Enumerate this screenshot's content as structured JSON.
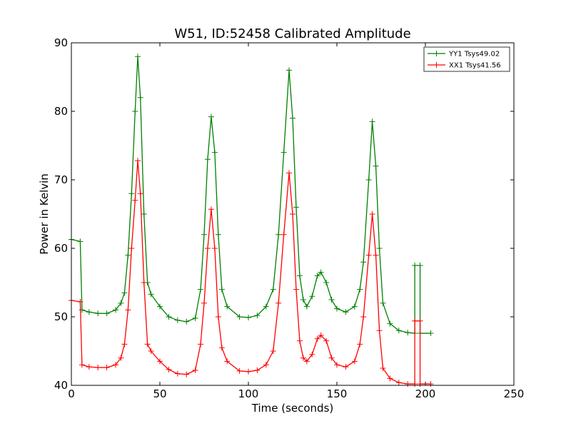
{
  "chart_data": {
    "type": "line",
    "title": "W51, ID:52458 Calibrated Amplitude",
    "xlabel": "Time (seconds)",
    "ylabel": "Power in Kelvin",
    "xlim": [
      0,
      250
    ],
    "ylim": [
      40,
      90
    ],
    "xticks": [
      "0",
      "50",
      "100",
      "150",
      "200",
      "250"
    ],
    "yticks": [
      "40",
      "50",
      "60",
      "70",
      "80",
      "90"
    ],
    "grid": false,
    "legend_position": "top-right",
    "series": [
      {
        "name": "YY1 Tsys49.02",
        "color": "#008000",
        "marker": "+",
        "points": [
          [
            0,
            61.3
          ],
          [
            5,
            61.0
          ],
          [
            6,
            51.0
          ],
          [
            10,
            50.7
          ],
          [
            15,
            50.5
          ],
          [
            20,
            50.5
          ],
          [
            25,
            51.0
          ],
          [
            28,
            52.0
          ],
          [
            30,
            53.5
          ],
          [
            32,
            59.0
          ],
          [
            34,
            68.0
          ],
          [
            36,
            80.0
          ],
          [
            37.5,
            88.0
          ],
          [
            39,
            82.0
          ],
          [
            41,
            65.0
          ],
          [
            43,
            55.0
          ],
          [
            45,
            53.3
          ],
          [
            50,
            51.5
          ],
          [
            55,
            50.0
          ],
          [
            60,
            49.5
          ],
          [
            65,
            49.3
          ],
          [
            70,
            49.8
          ],
          [
            73,
            54.0
          ],
          [
            75,
            62.0
          ],
          [
            77,
            73.0
          ],
          [
            79,
            79.2
          ],
          [
            81,
            74.0
          ],
          [
            83,
            62.0
          ],
          [
            85,
            54.0
          ],
          [
            88,
            51.5
          ],
          [
            95,
            50.0
          ],
          [
            100,
            49.9
          ],
          [
            105,
            50.2
          ],
          [
            110,
            51.5
          ],
          [
            114,
            54.0
          ],
          [
            117,
            62.0
          ],
          [
            120,
            74.0
          ],
          [
            123,
            86.0
          ],
          [
            125,
            79.0
          ],
          [
            127,
            66.0
          ],
          [
            129,
            56.0
          ],
          [
            131,
            52.5
          ],
          [
            133,
            51.5
          ],
          [
            136,
            53.0
          ],
          [
            139,
            56.0
          ],
          [
            141,
            56.5
          ],
          [
            144,
            55.0
          ],
          [
            147,
            52.5
          ],
          [
            150,
            51.2
          ],
          [
            155,
            50.7
          ],
          [
            160,
            51.5
          ],
          [
            163,
            54.0
          ],
          [
            165,
            58.0
          ],
          [
            168,
            70.0
          ],
          [
            170,
            78.5
          ],
          [
            172,
            72.0
          ],
          [
            174,
            60.0
          ],
          [
            176,
            52.0
          ],
          [
            180,
            49.0
          ],
          [
            185,
            48.0
          ],
          [
            190,
            47.7
          ],
          [
            194,
            47.6
          ],
          [
            194,
            57.5
          ],
          [
            197,
            57.5
          ],
          [
            197,
            47.6
          ],
          [
            203,
            47.6
          ]
        ]
      },
      {
        "name": "XX1 Tsys41.56",
        "color": "#ff0000",
        "marker": "+",
        "points": [
          [
            0,
            52.4
          ],
          [
            5,
            52.2
          ],
          [
            6,
            43.0
          ],
          [
            10,
            42.7
          ],
          [
            15,
            42.6
          ],
          [
            20,
            42.6
          ],
          [
            25,
            43.0
          ],
          [
            28,
            44.0
          ],
          [
            30,
            46.0
          ],
          [
            32,
            51.0
          ],
          [
            34,
            60.0
          ],
          [
            36,
            67.0
          ],
          [
            37.5,
            72.8
          ],
          [
            39,
            68.0
          ],
          [
            41,
            55.0
          ],
          [
            43,
            46.0
          ],
          [
            45,
            45.0
          ],
          [
            50,
            43.5
          ],
          [
            55,
            42.3
          ],
          [
            60,
            41.7
          ],
          [
            65,
            41.6
          ],
          [
            70,
            42.2
          ],
          [
            73,
            46.0
          ],
          [
            75,
            52.0
          ],
          [
            77,
            60.0
          ],
          [
            79,
            65.7
          ],
          [
            81,
            60.0
          ],
          [
            83,
            50.0
          ],
          [
            85,
            45.5
          ],
          [
            88,
            43.5
          ],
          [
            95,
            42.1
          ],
          [
            100,
            42.0
          ],
          [
            105,
            42.2
          ],
          [
            110,
            43.0
          ],
          [
            114,
            45.0
          ],
          [
            117,
            52.0
          ],
          [
            120,
            62.0
          ],
          [
            123,
            71.0
          ],
          [
            125,
            65.0
          ],
          [
            127,
            54.0
          ],
          [
            129,
            46.5
          ],
          [
            131,
            44.0
          ],
          [
            133,
            43.5
          ],
          [
            136,
            44.5
          ],
          [
            139,
            46.8
          ],
          [
            141,
            47.3
          ],
          [
            144,
            46.5
          ],
          [
            147,
            44.0
          ],
          [
            150,
            43.0
          ],
          [
            155,
            42.7
          ],
          [
            160,
            43.5
          ],
          [
            163,
            46.0
          ],
          [
            165,
            50.0
          ],
          [
            168,
            59.0
          ],
          [
            170,
            65.0
          ],
          [
            172,
            59.0
          ],
          [
            174,
            48.0
          ],
          [
            176,
            42.5
          ],
          [
            180,
            41.0
          ],
          [
            185,
            40.4
          ],
          [
            190,
            40.2
          ],
          [
            194,
            40.2
          ],
          [
            194,
            49.4
          ],
          [
            197,
            49.4
          ],
          [
            197,
            40.2
          ],
          [
            203,
            40.2
          ]
        ]
      }
    ]
  }
}
